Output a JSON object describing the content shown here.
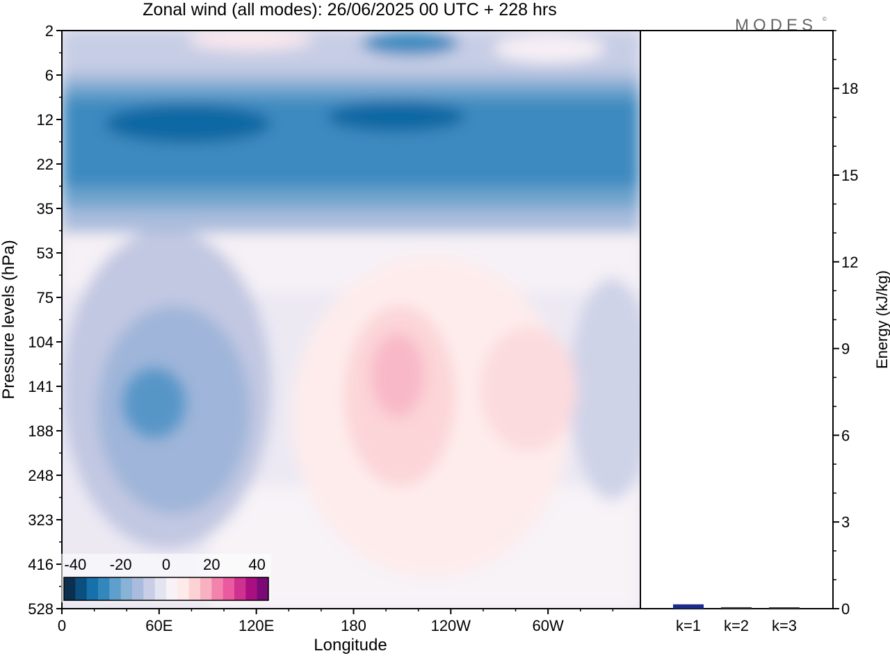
{
  "title": "Zonal wind (all modes):  26/06/2025  00 UTC  + 228 hrs",
  "logo": "MODES",
  "chart_data": [
    {
      "type": "heatmap",
      "title": "Zonal wind (all modes):  26/06/2025  00 UTC  + 228 hrs",
      "xlabel": "Longitude",
      "ylabel": "Pressure levels (hPa)",
      "x_ticks": [
        "0",
        "60E",
        "120E",
        "180",
        "120W",
        "60W"
      ],
      "x_tick_degrees": [
        0,
        60,
        120,
        180,
        240,
        300
      ],
      "x_range_degrees": [
        0,
        357
      ],
      "y_ticks": [
        "2",
        "6",
        "12",
        "22",
        "35",
        "53",
        "75",
        "104",
        "141",
        "188",
        "248",
        "323",
        "416",
        "528"
      ],
      "colorbar": {
        "tick_labels": [
          "-40",
          "-20",
          "0",
          "20",
          "40"
        ],
        "tick_values": [
          -40,
          -20,
          0,
          20,
          40
        ],
        "levels": [
          -45,
          -40,
          -35,
          -30,
          -25,
          -20,
          -15,
          -10,
          -5,
          0,
          5,
          10,
          15,
          20,
          25,
          30,
          35,
          40,
          45
        ],
        "colors": [
          "#0d2f4f",
          "#0b4f7f",
          "#1670aa",
          "#3387bd",
          "#5f9fcb",
          "#88b2d6",
          "#aabcde",
          "#c9cde5",
          "#e4e4f0",
          "#f8f2f6",
          "#feeae9",
          "#fcd2d5",
          "#f8b1c1",
          "#f383ad",
          "#e95a9f",
          "#cf318f",
          "#a90f81",
          "#7a0a75"
        ]
      },
      "features": [
        {
          "desc": "stratospheric easterly jet",
          "levels": "8-30",
          "value_range": [
            -35,
            -20
          ]
        },
        {
          "desc": "easterly maximum",
          "longitude": "60E",
          "level": 141,
          "value": -25
        },
        {
          "desc": "westerly maximum",
          "longitude": "200E",
          "level": 130,
          "value": 15
        }
      ]
    },
    {
      "type": "bar",
      "categories": [
        "k=1",
        "k=2",
        "k=3"
      ],
      "values": [
        0.15,
        0.05,
        0.03
      ],
      "ylabel": "Energy (kJ/kg)",
      "ylim": [
        0,
        20
      ],
      "y_ticks": [
        0,
        3,
        6,
        9,
        12,
        15,
        18
      ]
    }
  ]
}
